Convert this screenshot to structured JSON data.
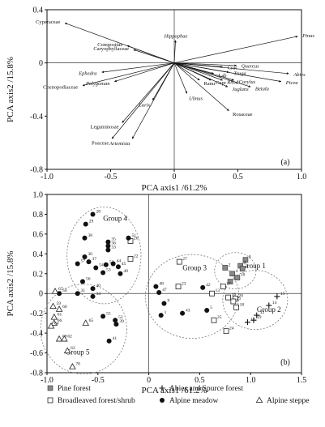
{
  "chart_data": [
    {
      "type": "scatter",
      "subtype": "biplot-vectors",
      "panel_label": "(a)",
      "xlabel": "PCA axis1 /61.2%",
      "ylabel": "PCA axis2 /15.8%",
      "xlim": [
        -1.0,
        1.0
      ],
      "ylim": [
        -0.8,
        0.4
      ],
      "xticks": [
        "-1.0",
        "-0.5",
        "0",
        "0.5",
        "1.0"
      ],
      "yticks": [
        "0.4",
        "0",
        "-0.4",
        "-0.8"
      ],
      "vectors": [
        {
          "name": "Cyperaceae",
          "x": -0.86,
          "y": 0.3,
          "italic": false
        },
        {
          "name": "Compositae",
          "x": -0.37,
          "y": 0.13,
          "italic": false
        },
        {
          "name": "Caryophyllaceae",
          "x": -0.32,
          "y": 0.1,
          "italic": false
        },
        {
          "name": "Hippophae",
          "x": 0.01,
          "y": 0.17,
          "italic": true
        },
        {
          "name": "Pinus",
          "x": 0.97,
          "y": 0.2,
          "italic": true
        },
        {
          "name": "Quercus",
          "x": 0.49,
          "y": -0.02,
          "italic": true
        },
        {
          "name": "Abies",
          "x": 0.9,
          "y": -0.08,
          "italic": true
        },
        {
          "name": "Picea",
          "x": 0.84,
          "y": -0.14,
          "italic": true
        },
        {
          "name": "Ephedra",
          "x": -0.57,
          "y": -0.07,
          "italic": true
        },
        {
          "name": "Cruc",
          "x": 0.38,
          "y": -0.03,
          "italic": false
        },
        {
          "name": "Tsuga",
          "x": 0.43,
          "y": -0.07,
          "italic": true
        },
        {
          "name": "Lab",
          "x": 0.31,
          "y": -0.08,
          "italic": false
        },
        {
          "name": "Corylus",
          "x": 0.47,
          "y": -0.13,
          "italic": true
        },
        {
          "name": "Rhod",
          "x": 0.38,
          "y": -0.13,
          "italic": true
        },
        {
          "name": "Cupr",
          "x": 0.29,
          "y": -0.13,
          "italic": false
        },
        {
          "name": "Ranu",
          "x": 0.2,
          "y": -0.13,
          "italic": false
        },
        {
          "name": "Betula",
          "x": 0.6,
          "y": -0.18,
          "italic": true
        },
        {
          "name": "Juglans",
          "x": 0.42,
          "y": -0.18,
          "italic": true
        },
        {
          "name": "Ulmus",
          "x": 0.1,
          "y": -0.23,
          "italic": true
        },
        {
          "name": "Chenopodiaceae",
          "x": -0.72,
          "y": -0.17,
          "italic": false
        },
        {
          "name": "Polygonum",
          "x": -0.47,
          "y": -0.14,
          "italic": true
        },
        {
          "name": "Larix",
          "x": -0.17,
          "y": -0.28,
          "italic": true
        },
        {
          "name": "Rosaceae",
          "x": 0.43,
          "y": -0.36,
          "italic": false
        },
        {
          "name": "Leguminosae",
          "x": -0.41,
          "y": -0.45,
          "italic": false
        },
        {
          "name": "Poaceae",
          "x": -0.49,
          "y": -0.57,
          "italic": false
        },
        {
          "name": "Artemisia",
          "x": -0.33,
          "y": -0.57,
          "italic": true
        }
      ]
    },
    {
      "type": "scatter",
      "panel_label": "(b)",
      "xlabel": "PCA axis1 /61.2%",
      "ylabel": "PCA axis2 /15.8%",
      "xlim": [
        -1.0,
        1.5
      ],
      "ylim": [
        -0.8,
        1.0
      ],
      "xticks": [
        "-1.0",
        "-0.5",
        "0",
        "0.5",
        "1.0",
        "1.5"
      ],
      "yticks": [
        "1.0",
        "0.8",
        "0.6",
        "0.4",
        "0.2",
        "0",
        "-0.2",
        "-0.4",
        "-0.6",
        "-0.8"
      ],
      "groups": [
        {
          "name": "Group 1",
          "label_x": 1.03,
          "label_y": 0.28
        },
        {
          "name": "Group 2",
          "label_x": 1.18,
          "label_y": -0.16
        },
        {
          "name": "Group 3",
          "label_x": 0.45,
          "label_y": 0.26
        },
        {
          "name": "Group 4",
          "label_x": -0.33,
          "label_y": 0.76
        },
        {
          "name": "Group 5",
          "label_x": -0.7,
          "label_y": -0.59
        }
      ],
      "legend": [
        {
          "label": "Pine forest",
          "marker": "square-filled"
        },
        {
          "label": "Broadleaved forest/shrub",
          "marker": "square-open"
        },
        {
          "label": "Abies and Spurce forest",
          "marker": "plus"
        },
        {
          "label": "Alpine meadow",
          "marker": "circle-filled"
        },
        {
          "label": "Alpine steppe",
          "marker": "triangle-open"
        }
      ],
      "series": [
        {
          "name": "Pine forest",
          "marker": "square-filled",
          "points": [
            {
              "id": "8",
              "x": 0.95,
              "y": 0.34
            },
            {
              "id": "7",
              "x": 0.9,
              "y": 0.28
            },
            {
              "id": "2",
              "x": 0.75,
              "y": 0.26
            },
            {
              "id": "3",
              "x": 0.92,
              "y": 0.25
            },
            {
              "id": "4",
              "x": 0.82,
              "y": 0.2
            },
            {
              "id": "6",
              "x": 0.8,
              "y": 0.12
            },
            {
              "id": "10",
              "x": 0.87,
              "y": 0.16
            }
          ]
        },
        {
          "name": "Broadleaved forest/shrub",
          "marker": "square-open",
          "points": [
            {
              "id": "27",
              "x": 0.3,
              "y": 0.32
            },
            {
              "id": "26",
              "x": -0.18,
              "y": 0.53
            },
            {
              "id": "22",
              "x": -0.18,
              "y": 0.35
            },
            {
              "id": "17",
              "x": 0.73,
              "y": 0.07
            },
            {
              "id": "13",
              "x": 0.62,
              "y": 0.0
            },
            {
              "id": "16",
              "x": 0.78,
              "y": -0.04
            },
            {
              "id": "20",
              "x": 0.85,
              "y": -0.05
            },
            {
              "id": "21",
              "x": 0.83,
              "y": -0.08
            },
            {
              "id": "18",
              "x": 0.86,
              "y": -0.14
            },
            {
              "id": "25",
              "x": 0.64,
              "y": -0.27
            },
            {
              "id": "24",
              "x": 0.76,
              "y": -0.38
            },
            {
              "id": "23",
              "x": 0.29,
              "y": 0.07
            }
          ]
        },
        {
          "name": "Abies and Spurce forest",
          "marker": "plus",
          "points": [
            {
              "id": "15",
              "x": 1.26,
              "y": -0.03
            },
            {
              "id": "14",
              "x": 1.18,
              "y": -0.12
            },
            {
              "id": "12",
              "x": 1.06,
              "y": -0.22
            },
            {
              "id": "19",
              "x": 1.03,
              "y": -0.27
            },
            {
              "id": "11",
              "x": 0.97,
              "y": -0.29
            }
          ]
        },
        {
          "name": "Alpine meadow",
          "marker": "circle-filled",
          "points": [
            {
              "id": "28",
              "x": -0.55,
              "y": 0.8
            },
            {
              "id": "29",
              "x": -0.62,
              "y": 0.7
            },
            {
              "id": "38",
              "x": -0.63,
              "y": 0.56
            },
            {
              "id": "35",
              "x": -0.4,
              "y": 0.52
            },
            {
              "id": "36",
              "x": -0.4,
              "y": 0.48
            },
            {
              "id": "33",
              "x": -0.4,
              "y": 0.44
            },
            {
              "id": "51",
              "x": -0.2,
              "y": 0.56
            },
            {
              "id": "30",
              "x": -0.63,
              "y": 0.37
            },
            {
              "id": "37",
              "x": -0.59,
              "y": 0.32
            },
            {
              "id": "57",
              "x": -0.7,
              "y": 0.3
            },
            {
              "id": "54",
              "x": -0.52,
              "y": 0.26
            },
            {
              "id": "44",
              "x": -0.35,
              "y": 0.3
            },
            {
              "id": "52",
              "x": -0.42,
              "y": 0.29
            },
            {
              "id": "45",
              "x": -0.3,
              "y": 0.27
            },
            {
              "id": "53",
              "x": -0.45,
              "y": 0.21
            },
            {
              "id": "56",
              "x": -0.65,
              "y": 0.12
            },
            {
              "id": "40",
              "x": -0.55,
              "y": 0.05
            },
            {
              "id": "34",
              "x": -0.55,
              "y": -0.03
            },
            {
              "id": "49",
              "x": -0.28,
              "y": 0.2
            },
            {
              "id": "31",
              "x": -0.7,
              "y": 0.0
            },
            {
              "id": "50",
              "x": -0.88,
              "y": 0.0
            },
            {
              "id": "48",
              "x": 0.07,
              "y": 0.07
            },
            {
              "id": "47",
              "x": 0.1,
              "y": 0.01
            },
            {
              "id": "9",
              "x": 0.15,
              "y": -0.1
            },
            {
              "id": "42",
              "x": 0.53,
              "y": 0.06
            },
            {
              "id": "43",
              "x": 0.33,
              "y": -0.2
            },
            {
              "id": "5",
              "x": 0.57,
              "y": -0.17
            },
            {
              "id": "1",
              "x": 0.12,
              "y": -0.22
            },
            {
              "id": "52",
              "x": -0.33,
              "y": -0.27
            },
            {
              "id": "55",
              "x": -0.45,
              "y": -0.23
            },
            {
              "id": "39",
              "x": -0.32,
              "y": -0.31
            },
            {
              "id": "41",
              "x": -0.39,
              "y": -0.48
            }
          ]
        },
        {
          "name": "Alpine steppe",
          "marker": "triangle-open",
          "points": [
            {
              "id": "67",
              "x": -0.92,
              "y": 0.02
            },
            {
              "id": "59",
              "x": -0.94,
              "y": -0.13
            },
            {
              "id": "60",
              "x": -0.88,
              "y": -0.16
            },
            {
              "id": "61",
              "x": -0.93,
              "y": -0.24
            },
            {
              "id": "66",
              "x": -0.93,
              "y": -0.3
            },
            {
              "id": "64",
              "x": -0.96,
              "y": -0.33
            },
            {
              "id": "65",
              "x": -0.62,
              "y": -0.3
            },
            {
              "id": "68",
              "x": -0.88,
              "y": -0.46
            },
            {
              "id": "62",
              "x": -0.83,
              "y": -0.46
            },
            {
              "id": "63",
              "x": -0.8,
              "y": -0.58
            },
            {
              "id": "70",
              "x": -0.75,
              "y": -0.74
            }
          ]
        }
      ]
    }
  ]
}
